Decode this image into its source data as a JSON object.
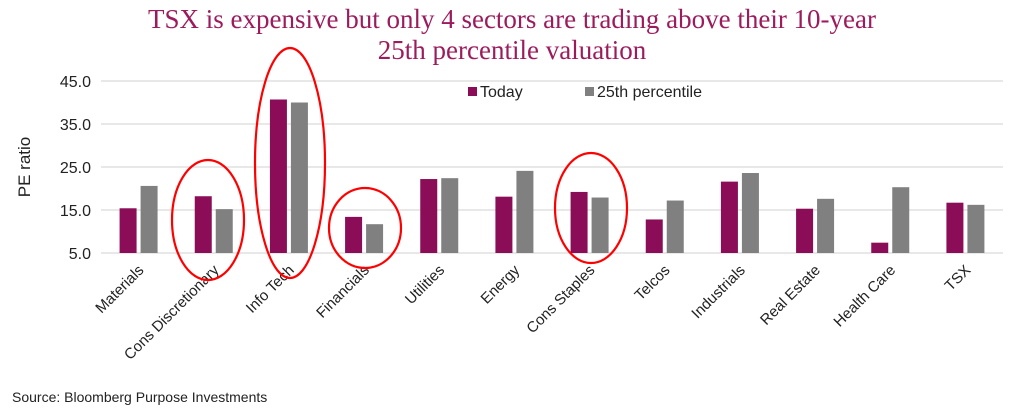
{
  "chart_data": {
    "type": "bar",
    "title_lines": [
      "TSX is expensive but only 4 sectors are trading above their 10-year",
      "25th percentile valuation"
    ],
    "xlabel": "",
    "ylabel": "PE ratio",
    "ylim": [
      5,
      45
    ],
    "yticks": [
      "5.0",
      "15.0",
      "25.0",
      "35.0",
      "45.0"
    ],
    "grid": true,
    "legend_position": "top",
    "categories": [
      "Materials",
      "Cons Discretionary",
      "Info Tech",
      "Financials",
      "Utilities",
      "Energy",
      "Cons Staples",
      "Telcos",
      "Industrials",
      "Real Estate",
      "Health Care",
      "TSX"
    ],
    "series": [
      {
        "name": "Today",
        "color": "#8b0d57",
        "values": [
          15.4,
          18.2,
          40.7,
          13.4,
          22.2,
          18.1,
          19.2,
          12.8,
          21.6,
          15.3,
          7.4,
          16.7
        ]
      },
      {
        "name": "25th percentile",
        "color": "#808080",
        "values": [
          20.6,
          15.2,
          40.0,
          11.7,
          22.4,
          24.1,
          17.9,
          17.2,
          23.6,
          17.6,
          20.3,
          16.2
        ]
      }
    ],
    "highlighted_categories": [
      "Cons Discretionary",
      "Info Tech",
      "Financials",
      "Cons Staples"
    ],
    "highlight_color": "#ff0000",
    "source": "Source: Bloomberg Purpose Investments"
  }
}
